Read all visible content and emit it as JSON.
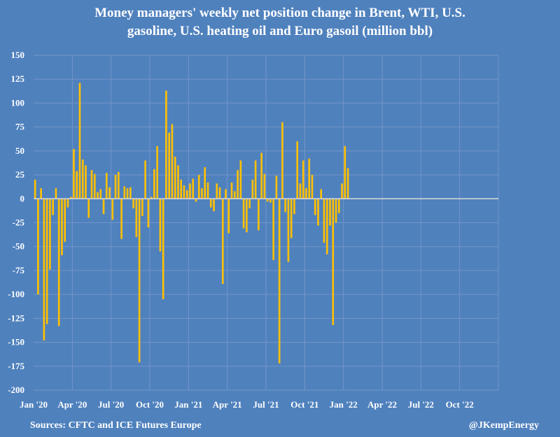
{
  "chart_data": {
    "type": "bar",
    "title_line1": "Money managers' weekly net position change in Brent, WTI, U.S.",
    "title_line2": "gasoline, U.S. heating oil and Euro gasoil (million bbl)",
    "ylim": [
      -200,
      150
    ],
    "yticks": [
      150,
      125,
      100,
      75,
      50,
      25,
      0,
      -25,
      -50,
      -75,
      -100,
      -125,
      -150,
      -175,
      -200
    ],
    "xticks": [
      "Jan '20",
      "Apr '20",
      "Jul '20",
      "Oct '20",
      "Jan '21",
      "Apr '21",
      "Jul '21",
      "Oct '21",
      "Jan '22",
      "Apr '22",
      "Jul '22",
      "Oct '22"
    ],
    "x_range_weeks": 156,
    "bar_color": "#ffc000",
    "zero_line_color": "#d9d9d9",
    "grid_color": "#7396c8",
    "series": [
      {
        "name": "Weekly net position change",
        "values": [
          20,
          -100,
          11,
          -148,
          -131,
          -74,
          -17,
          11,
          -133,
          -59,
          -45,
          -9,
          2,
          52,
          29,
          121,
          41,
          35,
          -20,
          30,
          26,
          7,
          10,
          -16,
          27,
          12,
          -22,
          25,
          28,
          -42,
          13,
          11,
          12,
          -10,
          -40,
          -171,
          -18,
          40,
          -30,
          2,
          31,
          55,
          -55,
          -105,
          113,
          69,
          78,
          44,
          35,
          20,
          14,
          9,
          16,
          21,
          -3,
          25,
          11,
          33,
          17,
          -9,
          -13,
          16,
          12,
          -89,
          10,
          -36,
          17,
          8,
          30,
          40,
          -31,
          -35,
          -10,
          20,
          40,
          -33,
          48,
          26,
          -3,
          -4,
          -64,
          24,
          -172,
          80,
          -14,
          -66,
          -41,
          -16,
          60,
          16,
          40,
          11,
          42,
          25,
          -17,
          -28,
          10,
          -46,
          -58,
          -28,
          -132,
          -25,
          -15,
          16,
          55,
          32
        ]
      }
    ]
  },
  "footer": {
    "source": "Sources: CFTC and ICE Futures Europe",
    "credit": "@JKempEnergy"
  }
}
